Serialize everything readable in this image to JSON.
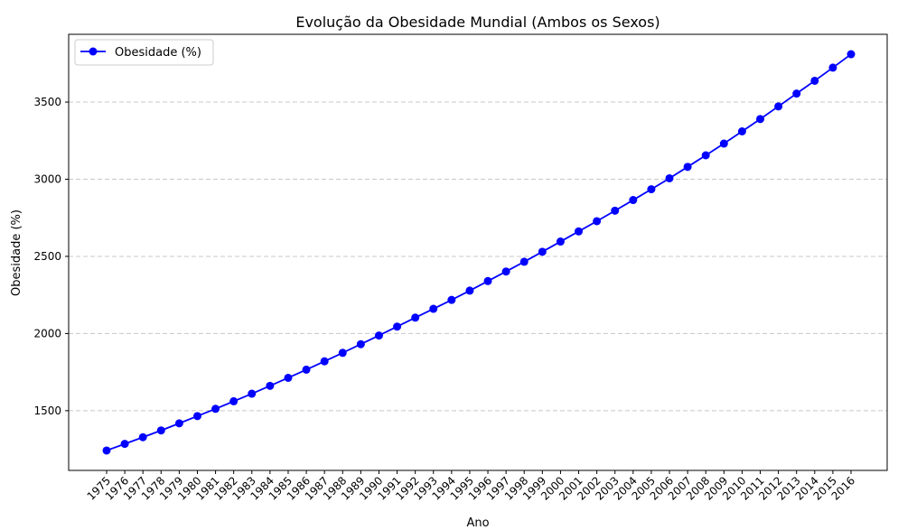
{
  "chart_data": {
    "type": "line",
    "title": "Evolução da Obesidade Mundial (Ambos os Sexos)",
    "xlabel": "Ano",
    "ylabel": "Obesidade (%)",
    "x": [
      1975,
      1976,
      1977,
      1978,
      1979,
      1980,
      1981,
      1982,
      1983,
      1984,
      1985,
      1986,
      1987,
      1988,
      1989,
      1990,
      1991,
      1992,
      1993,
      1994,
      1995,
      1996,
      1997,
      1998,
      1999,
      2000,
      2001,
      2002,
      2003,
      2004,
      2005,
      2006,
      2007,
      2008,
      2009,
      2010,
      2011,
      2012,
      2013,
      2014,
      2015,
      2016
    ],
    "series": [
      {
        "name": "Obesidade (%)",
        "color": "#0000ff",
        "marker": "circle",
        "values": [
          1242,
          1285,
          1328,
          1372,
          1418,
          1465,
          1512,
          1561,
          1610,
          1661,
          1713,
          1766,
          1820,
          1875,
          1931,
          1987,
          2045,
          2103,
          2160,
          2218,
          2278,
          2340,
          2402,
          2465,
          2530,
          2596,
          2662,
          2728,
          2796,
          2865,
          2935,
          3006,
          3080,
          3155,
          3231,
          3310,
          3390,
          3472,
          3555,
          3638,
          3723,
          3810
        ]
      }
    ],
    "yticks": [
      1500,
      2000,
      2500,
      3000,
      3500
    ],
    "ylim": [
      1113,
      3939
    ],
    "grid": {
      "y": true,
      "x": false,
      "style": "dashed",
      "color": "#c8c8c8"
    },
    "legend": {
      "placement": "top-left"
    }
  }
}
